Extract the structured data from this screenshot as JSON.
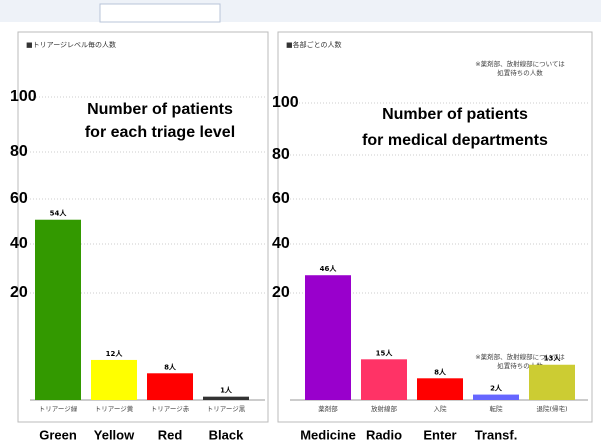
{
  "chart_data": [
    {
      "type": "bar",
      "title": "■トリアージレベル毎の人数",
      "overlay_title": [
        "Number of  patients",
        "for each triage level"
      ],
      "axis_labels": [
        "100",
        "80",
        "60",
        "40",
        "20"
      ],
      "categories": [
        "トリアージ緑",
        "トリアージ黄",
        "トリアージ赤",
        "トリアージ黒"
      ],
      "english_labels": [
        "Green",
        "Yellow",
        "Red",
        "Black"
      ],
      "values": [
        54,
        12,
        8,
        1
      ],
      "value_labels": [
        "54人",
        "12人",
        "8人",
        "1人"
      ],
      "colors": [
        "#339900",
        "#ffff00",
        "#ff0000",
        "#333333"
      ],
      "ylim": [
        0,
        65
      ]
    },
    {
      "type": "bar",
      "title": "■各部ごとの人数",
      "note": [
        "※薬剤部、放射線部については",
        "処置待ちの人数"
      ],
      "overlay_title": [
        "Number of  patients",
        "for medical departments"
      ],
      "axis_labels": [
        "100",
        "80",
        "60",
        "40",
        "20"
      ],
      "categories": [
        "薬剤部",
        "放射線部",
        "入院",
        "転院",
        "退院(帰宅)"
      ],
      "english_labels": [
        "Medicine",
        "Radio",
        "Enter",
        "Transf.",
        null
      ],
      "values": [
        46,
        15,
        8,
        2,
        13
      ],
      "value_labels": [
        "46人",
        "15人",
        "8人",
        "2人",
        "13人"
      ],
      "colors": [
        "#9900cc",
        "#ff3366",
        "#ff0000",
        "#6666ff",
        "#cccc33"
      ],
      "ylim": [
        0,
        80
      ]
    }
  ]
}
